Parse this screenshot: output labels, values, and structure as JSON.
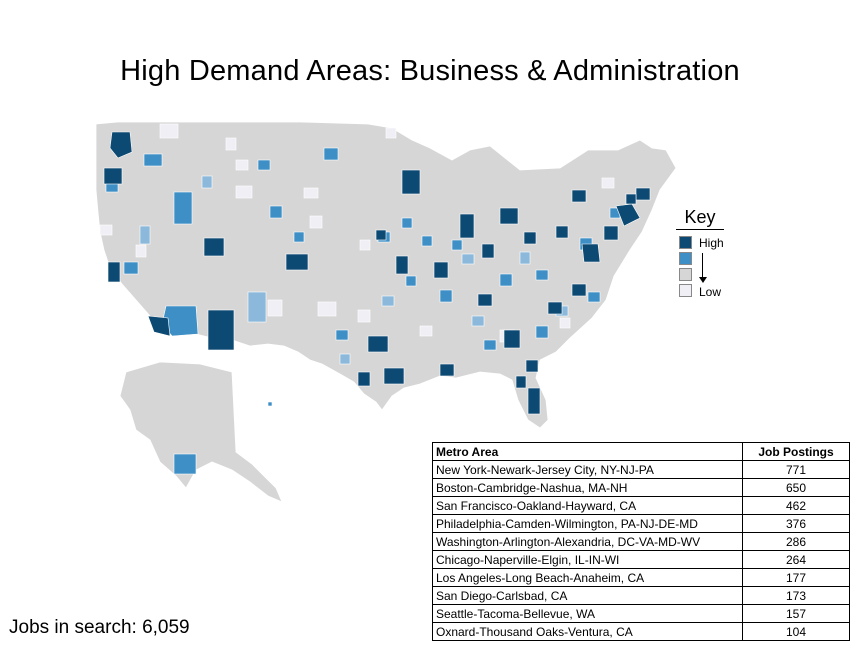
{
  "title": "High Demand Areas: Business & Administration",
  "key": {
    "title": "Key",
    "high_label": "High",
    "low_label": "Low",
    "scale_colors": [
      "#0d4a73",
      "#3d8fc6",
      "#d6d6d6",
      "#efeff5"
    ]
  },
  "colors": {
    "land": "#d6d6d6",
    "high": "#0d4a73",
    "mid": "#3d8fc6",
    "light": "#8cb8dc",
    "low": "#efeff5"
  },
  "table": {
    "header_area": "Metro Area",
    "header_postings": "Job Postings",
    "rows": [
      {
        "area": "New York-Newark-Jersey City, NY-NJ-PA",
        "postings": "771"
      },
      {
        "area": "Boston-Cambridge-Nashua, MA-NH",
        "postings": "650"
      },
      {
        "area": "San Francisco-Oakland-Hayward, CA",
        "postings": "462"
      },
      {
        "area": "Philadelphia-Camden-Wilmington, PA-NJ-DE-MD",
        "postings": "376"
      },
      {
        "area": "Washington-Arlington-Alexandria, DC-VA-MD-WV",
        "postings": "286"
      },
      {
        "area": "Chicago-Naperville-Elgin, IL-IN-WI",
        "postings": "264"
      },
      {
        "area": "Los Angeles-Long Beach-Anaheim, CA",
        "postings": "177"
      },
      {
        "area": "San Diego-Carlsbad, CA",
        "postings": "173"
      },
      {
        "area": "Seattle-Tacoma-Bellevue, WA",
        "postings": "157"
      },
      {
        "area": "Oxnard-Thousand Oaks-Ventura, CA",
        "postings": "104"
      }
    ]
  },
  "jobs_in_search_label": "Jobs in search: 6,059"
}
